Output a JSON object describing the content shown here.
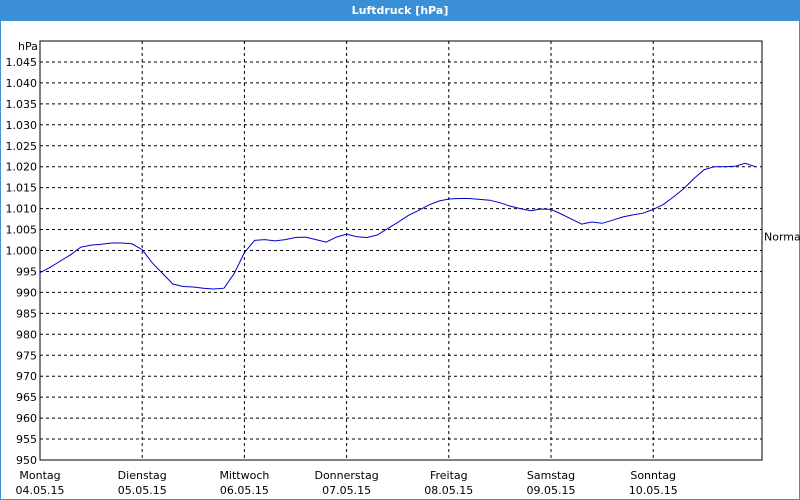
{
  "window": {
    "title": "Luftdruck [hPa]"
  },
  "chart_data": {
    "type": "line",
    "title": "Luftdruck [hPa]",
    "ylabel": "hPa",
    "ylim": [
      950,
      1050
    ],
    "yticks": [
      "950",
      "955",
      "960",
      "965",
      "970",
      "975",
      "980",
      "985",
      "990",
      "995",
      "1.000",
      "1.005",
      "1.010",
      "1.015",
      "1.020",
      "1.025",
      "1.030",
      "1.035",
      "1.040",
      "1.045"
    ],
    "yticks_values": [
      950,
      955,
      960,
      965,
      970,
      975,
      980,
      985,
      990,
      995,
      1000,
      1005,
      1010,
      1015,
      1020,
      1025,
      1030,
      1035,
      1040,
      1045
    ],
    "x_days": [
      {
        "day": "Montag",
        "date": "04.05.15"
      },
      {
        "day": "Dienstag",
        "date": "05.05.15"
      },
      {
        "day": "Mittwoch",
        "date": "06.05.15"
      },
      {
        "day": "Donnerstag",
        "date": "07.05.15"
      },
      {
        "day": "Freitag",
        "date": "08.05.15"
      },
      {
        "day": "Samstag",
        "date": "09.05.15"
      },
      {
        "day": "Sonntag",
        "date": "10.05.15"
      }
    ],
    "reference": {
      "label": "Normal",
      "value": 1003.3
    },
    "grid": true,
    "line_color": "#0000cc",
    "series": [
      {
        "x_days": [
          0,
          0.1,
          0.2,
          0.3,
          0.4,
          0.5,
          0.6,
          0.7,
          0.8,
          0.9,
          1.0,
          1.1,
          1.2,
          1.3,
          1.4,
          1.5,
          1.6,
          1.7,
          1.8,
          1.9,
          2.0,
          2.1,
          2.2,
          2.3,
          2.4,
          2.5,
          2.6,
          2.7,
          2.8,
          2.9,
          3.0,
          3.1,
          3.2,
          3.3,
          3.4,
          3.5,
          3.6,
          3.7,
          3.8,
          3.9,
          4.0,
          4.1,
          4.2,
          4.3,
          4.4,
          4.5,
          4.6,
          4.7,
          4.8,
          4.9,
          5.0,
          5.1,
          5.2,
          5.3,
          5.4,
          5.5,
          5.6,
          5.7,
          5.8,
          5.9,
          6.0,
          6.1,
          6.2,
          6.3,
          6.4,
          6.5,
          6.6,
          6.7,
          6.8,
          6.9,
          7.0
        ],
        "values": [
          994.7,
          996.0,
          997.5,
          999.0,
          1000.8,
          1001.3,
          1001.5,
          1001.8,
          1001.8,
          1001.6,
          1000.2,
          997.0,
          994.5,
          992.0,
          991.4,
          991.3,
          991.0,
          990.8,
          991.0,
          994.5,
          999.5,
          1002.4,
          1002.6,
          1002.3,
          1002.6,
          1003.1,
          1003.2,
          1002.6,
          1002.0,
          1003.2,
          1003.9,
          1003.3,
          1003.1,
          1003.7,
          1005.2,
          1006.7,
          1008.3,
          1009.5,
          1010.8,
          1011.8,
          1012.3,
          1012.4,
          1012.4,
          1012.2,
          1012.0,
          1011.4,
          1010.6,
          1010.0,
          1009.5,
          1009.9,
          1009.8,
          1008.7,
          1007.5,
          1006.3,
          1006.8,
          1006.5,
          1007.2,
          1008.0,
          1008.5,
          1008.9,
          1009.8,
          1011.0,
          1012.8,
          1014.8,
          1017.2,
          1019.3,
          1020.0,
          1020.0,
          1020.1,
          1020.8,
          1020.0
        ]
      }
    ]
  }
}
